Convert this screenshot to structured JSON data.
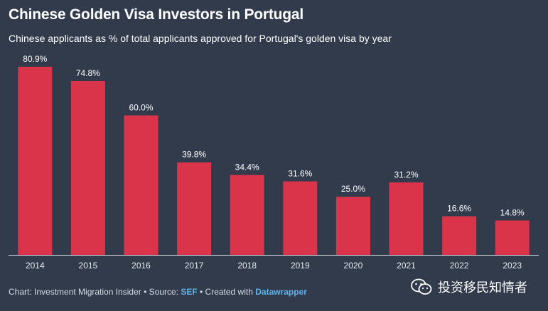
{
  "title": "Chinese Golden Visa Investors in Portugal",
  "subtitle": "Chinese applicants as % of total applicants approved for Portugal's golden visa by year",
  "footer": {
    "prefix": "Chart: Investment Migration Insider • Source: ",
    "source_link": "SEF",
    "middle": " • Created with ",
    "tool_link": "Datawrapper"
  },
  "watermark": {
    "text": "投资移民知情者",
    "icon": "wechat-icon"
  },
  "colors": {
    "background": "#323b4b",
    "bar": "#d9344a",
    "link": "#5fb3ea"
  },
  "chart_data": {
    "type": "bar",
    "categories": [
      "2014",
      "2015",
      "2016",
      "2017",
      "2018",
      "2019",
      "2020",
      "2021",
      "2022",
      "2023"
    ],
    "values": [
      80.9,
      74.8,
      60.0,
      39.8,
      34.4,
      31.6,
      25.0,
      31.2,
      16.6,
      14.8
    ],
    "value_labels": [
      "80.9%",
      "74.8%",
      "60.0%",
      "39.8%",
      "34.4%",
      "31.6%",
      "25.0%",
      "31.2%",
      "16.6%",
      "14.8%"
    ],
    "ylim": [
      0,
      80.9
    ],
    "grid": false,
    "legend": "none"
  }
}
